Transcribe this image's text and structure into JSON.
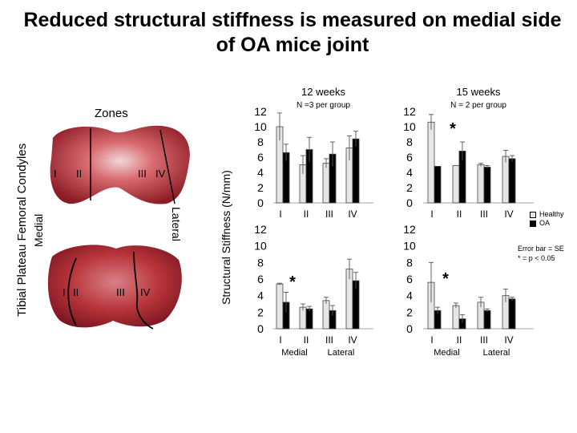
{
  "title_line1": "Reduced structural stiffness is measured on medial side",
  "title_line2": "of OA mice joint",
  "photo_labels": {
    "tibial_femoral": "Tibial Plateau   Femoral Condyles",
    "medial": "Medial",
    "lateral": "Lateral",
    "zones": "Zones",
    "zone_numerals": [
      "I",
      "II",
      "III",
      "IV"
    ]
  },
  "colors": {
    "healthy": "#e6e6e6",
    "oa": "#000000",
    "tissue": "#b8343a"
  },
  "chart_data": [
    {
      "type": "bar",
      "panel": "femoral-12-weeks",
      "title": "12 weeks",
      "subtitle": "N =3 per group",
      "categories": [
        "I",
        "II",
        "III",
        "IV"
      ],
      "ylim": [
        0,
        12
      ],
      "yticks": [
        0,
        2,
        4,
        6,
        8,
        10,
        12
      ],
      "series": [
        {
          "name": "Healthy",
          "values": [
            10,
            5,
            5.2,
            7.2
          ],
          "errors": [
            1.8,
            1.2,
            0.6,
            1.6
          ]
        },
        {
          "name": "OA",
          "values": [
            6.6,
            7,
            6.4,
            8.4
          ],
          "errors": [
            1.1,
            1.6,
            1.6,
            1
          ]
        }
      ],
      "annotations": []
    },
    {
      "type": "bar",
      "panel": "femoral-15-weeks",
      "title": "15 weeks",
      "subtitle": "N = 2 per group",
      "categories": [
        "I",
        "II",
        "III",
        "IV"
      ],
      "ylim": [
        0,
        12
      ],
      "yticks": [
        0,
        2,
        4,
        6,
        8,
        10,
        12
      ],
      "series": [
        {
          "name": "Healthy",
          "values": [
            10.6,
            4.9,
            5,
            6.1
          ],
          "errors": [
            1,
            0,
            0.2,
            0.8
          ]
        },
        {
          "name": "OA",
          "values": [
            4.8,
            6.8,
            4.7,
            5.8
          ],
          "errors": [
            0,
            1.2,
            0.2,
            0.4
          ]
        }
      ],
      "annotations": [
        {
          "text": "*",
          "category": "II"
        }
      ]
    },
    {
      "type": "bar",
      "panel": "tibial-12-weeks",
      "categories": [
        "I",
        "II",
        "III",
        "IV"
      ],
      "group_labels": [
        "Medial",
        "Lateral"
      ],
      "ylim": [
        0,
        12
      ],
      "yticks": [
        0,
        2,
        4,
        6,
        8,
        10,
        12
      ],
      "series": [
        {
          "name": "Healthy",
          "values": [
            5.4,
            2.6,
            3.4,
            7.2
          ],
          "errors": [
            0.1,
            0.4,
            0.4,
            1.2
          ]
        },
        {
          "name": "OA",
          "values": [
            3.2,
            2.4,
            2.2,
            5.8
          ],
          "errors": [
            1.2,
            0.3,
            0.6,
            1
          ]
        }
      ],
      "annotations": [
        {
          "text": "*",
          "category": "II"
        }
      ]
    },
    {
      "type": "bar",
      "panel": "tibial-15-weeks",
      "categories": [
        "I",
        "II",
        "III",
        "IV"
      ],
      "group_labels": [
        "Medial",
        "Lateral"
      ],
      "ylim": [
        0,
        12
      ],
      "yticks": [
        0,
        2,
        4,
        6,
        8,
        10,
        12
      ],
      "series": [
        {
          "name": "Healthy",
          "values": [
            5.6,
            2.8,
            3.2,
            4
          ],
          "errors": [
            2.4,
            0.3,
            0.6,
            0.8
          ]
        },
        {
          "name": "OA",
          "values": [
            2.2,
            1.2,
            2.2,
            3.6
          ],
          "errors": [
            0.4,
            0.5,
            0.2,
            0.2
          ]
        }
      ],
      "annotations": [
        {
          "text": "*",
          "category": "II"
        }
      ]
    }
  ],
  "y_axis_label": "Structural Stiffness  (N/mm)",
  "legend": {
    "healthy": "Healthy",
    "oa": "OA"
  },
  "notes": {
    "line1": "Error bar = SE",
    "line2": "* = p < 0.05"
  }
}
